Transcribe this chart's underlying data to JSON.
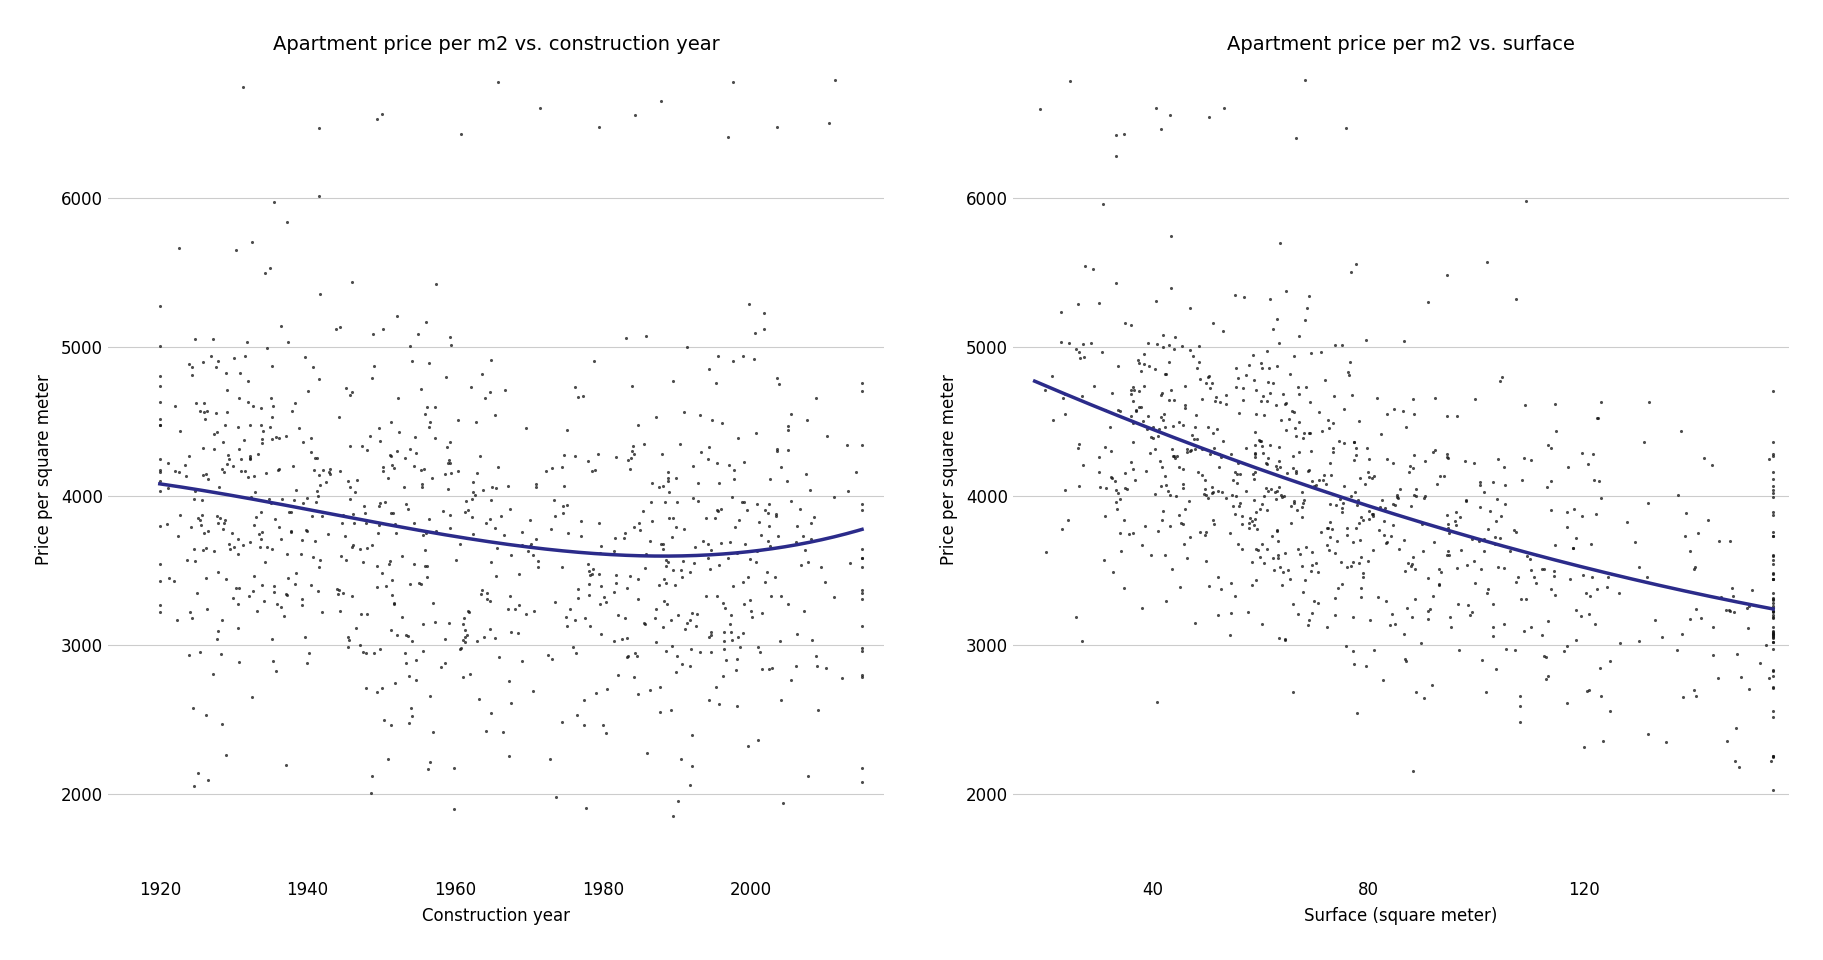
{
  "title_left": "Apartment price per m2 vs. construction year",
  "title_right": "Apartment price per m2 vs. surface",
  "xlabel_left": "Construction year",
  "xlabel_right": "Surface (square meter)",
  "ylabel": "Price per square meter",
  "xlim_left": [
    1913,
    2018
  ],
  "xlim_right": [
    14,
    158
  ],
  "ylim": [
    1450,
    6900
  ],
  "yticks": [
    2000,
    3000,
    4000,
    5000,
    6000
  ],
  "xticks_left": [
    1920,
    1940,
    1960,
    1980,
    2000
  ],
  "xticks_right": [
    40,
    80,
    120
  ],
  "dot_color": "#111111",
  "dot_size": 5,
  "dot_alpha": 0.75,
  "line_color": "#2b2b8a",
  "line_width": 2.5,
  "background_color": "#ffffff",
  "grid_color": "#cccccc",
  "title_fontsize": 14,
  "label_fontsize": 12,
  "tick_fontsize": 12,
  "seed": 42,
  "n_points": 900
}
